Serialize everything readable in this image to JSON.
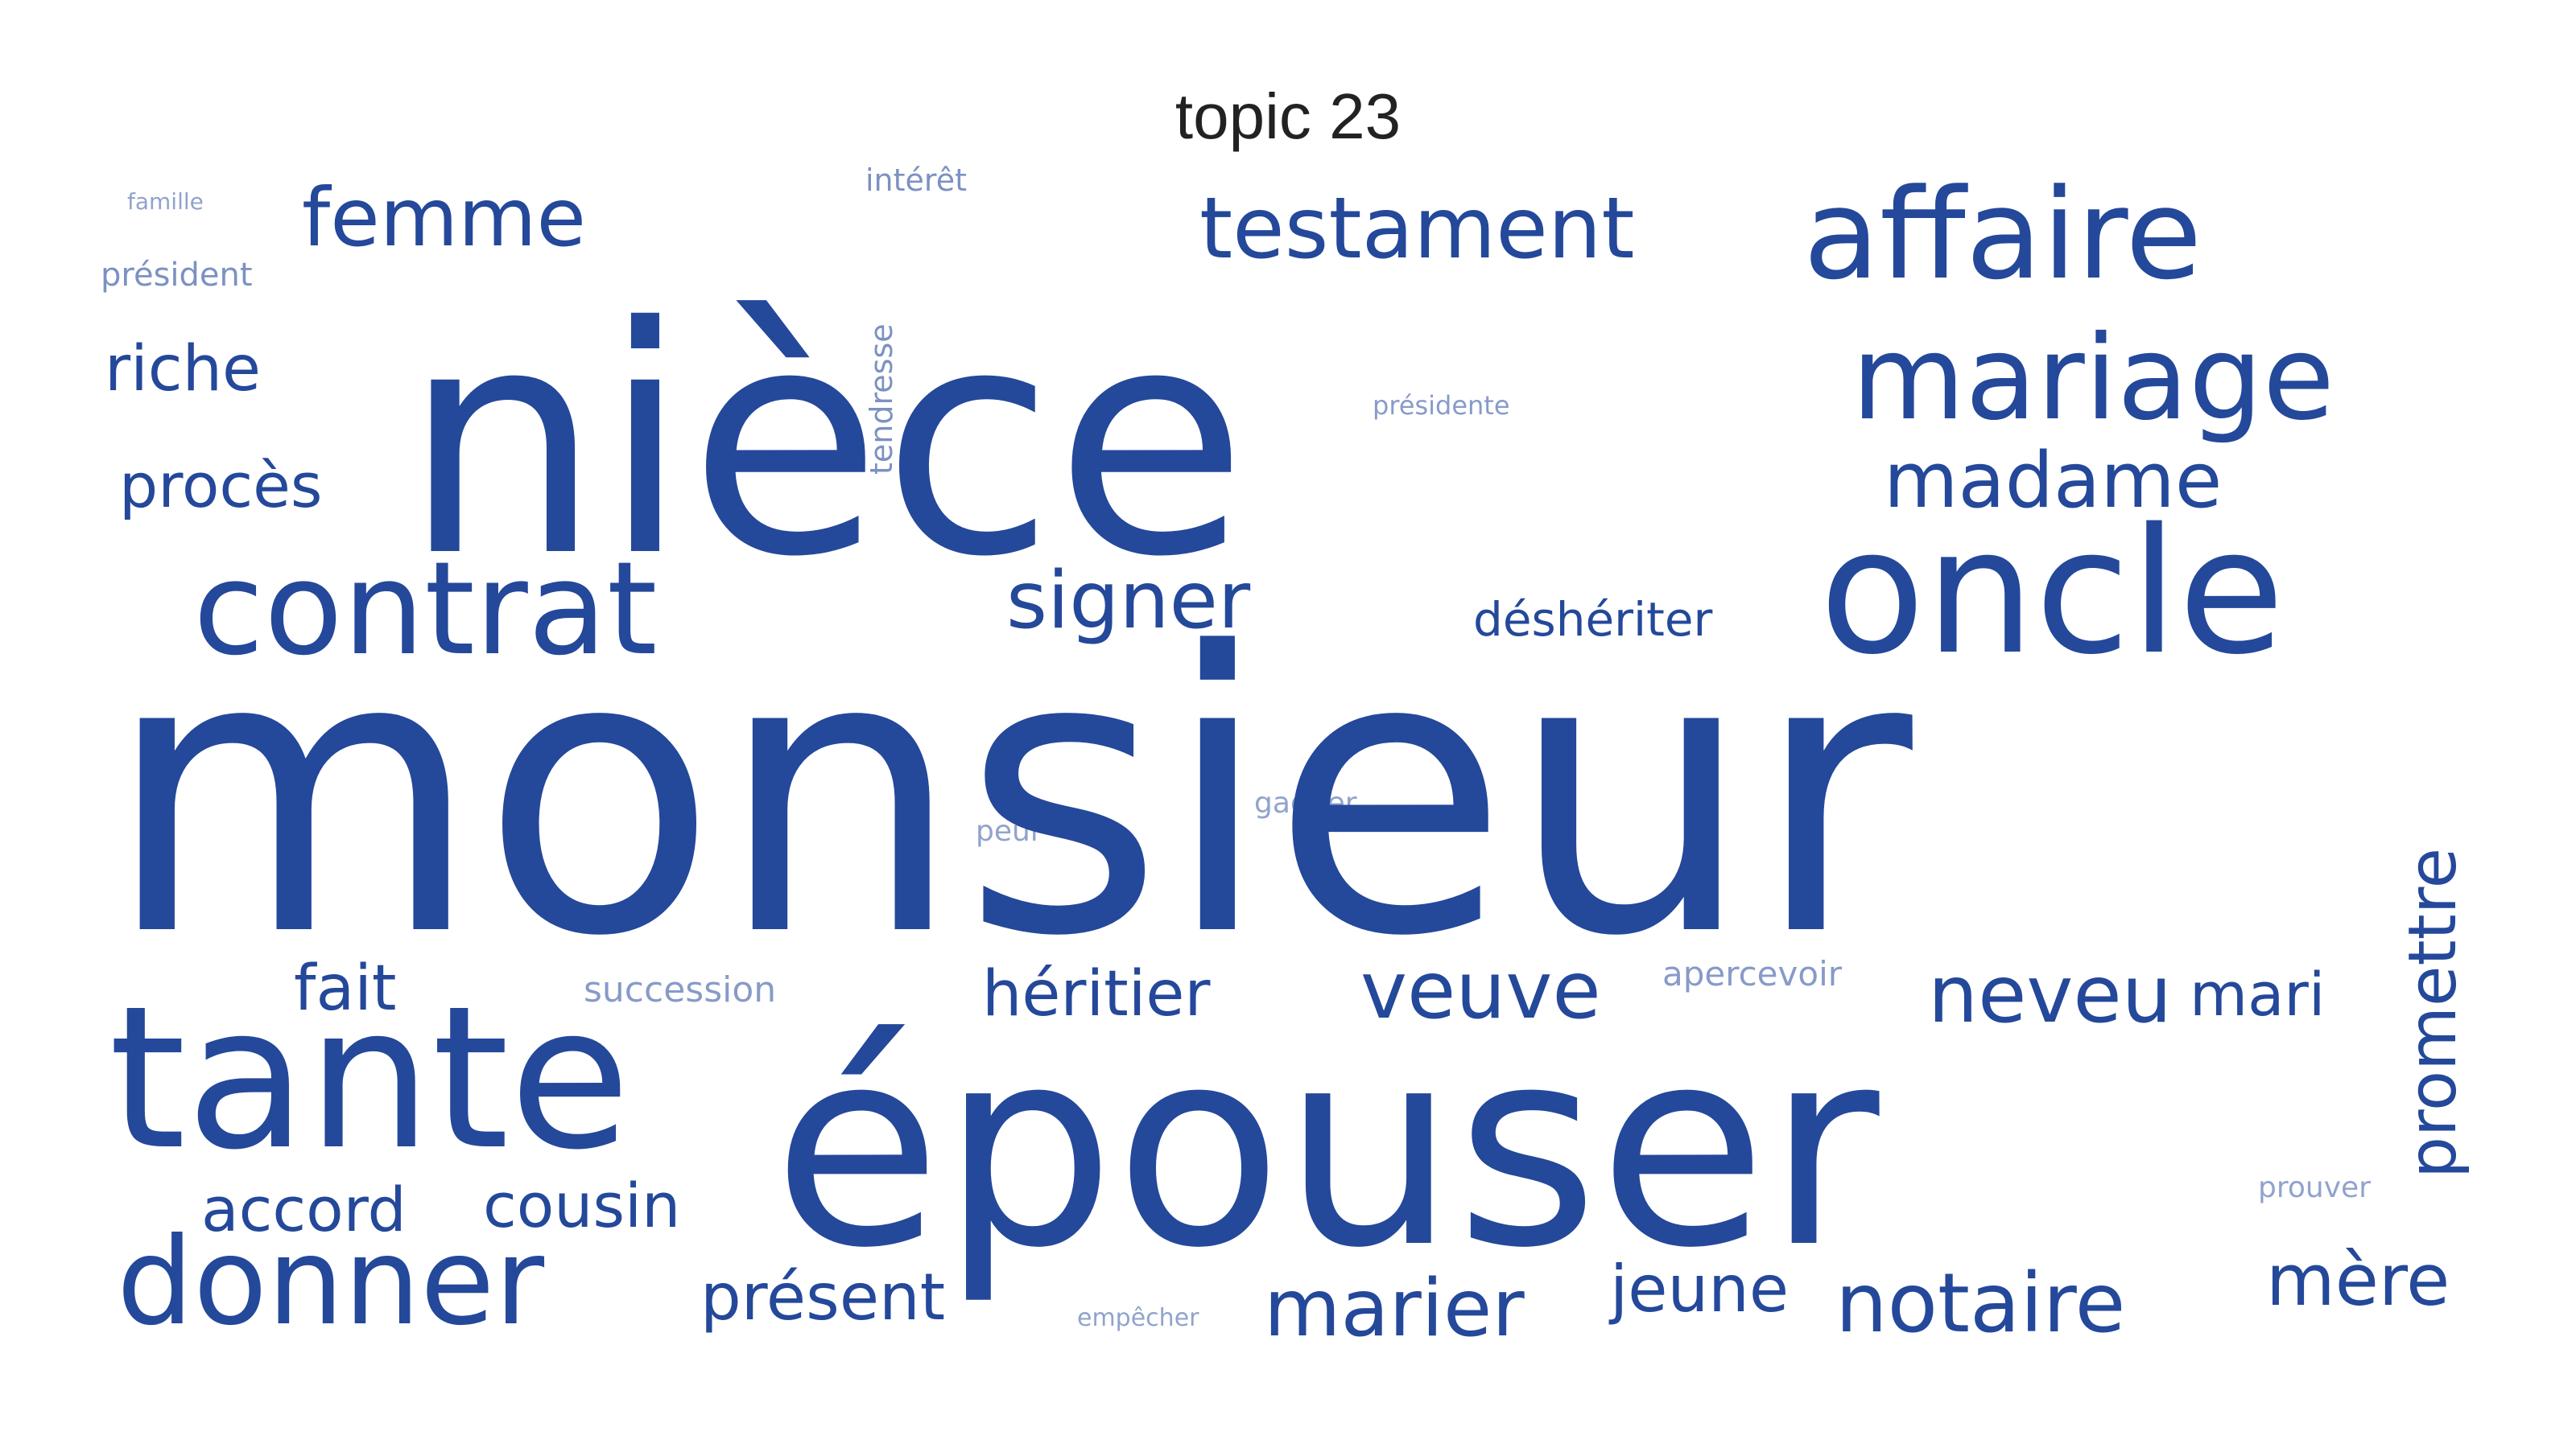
{
  "title": "topic 23",
  "word_color": "#24489A",
  "words": [
    "monsieur",
    "nièce",
    "épouser",
    "tante",
    "oncle",
    "affaire",
    "mariage",
    "contrat",
    "donner",
    "testament",
    "femme",
    "madame",
    "signer",
    "notaire",
    "marier",
    "neveu",
    "veuve",
    "riche",
    "procès",
    "promettre",
    "héritier",
    "mère",
    "jeune",
    "accord",
    "cousin",
    "présent",
    "fait",
    "mari",
    "déshériter",
    "succession",
    "apercevoir",
    "président",
    "intérêt",
    "tendresse",
    "présidente",
    "gagner",
    "peur",
    "prouver",
    "empêcher",
    "famille"
  ]
}
